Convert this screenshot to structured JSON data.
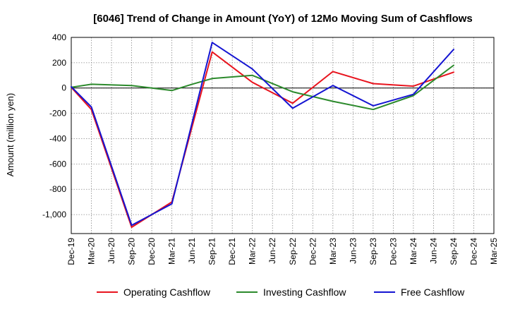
{
  "chart_data": {
    "type": "line",
    "title": "[6046]  Trend of Change in Amount (YoY) of 12Mo Moving Sum of Cashflows",
    "xlabel": "",
    "ylabel": "Amount (million yen)",
    "ylim": [
      -1150,
      400
    ],
    "yticks": [
      400,
      200,
      0,
      -200,
      -400,
      -600,
      -800,
      -1000
    ],
    "ytick_labels": [
      "400",
      "200",
      "0",
      "-200",
      "-400",
      "-600",
      "-800",
      "-1,000"
    ],
    "categories": [
      "Dec-19",
      "Mar-20",
      "Jun-20",
      "Sep-20",
      "Dec-20",
      "Mar-21",
      "Jun-21",
      "Sep-21",
      "Dec-21",
      "Mar-22",
      "Jun-22",
      "Sep-22",
      "Dec-22",
      "Mar-23",
      "Jun-23",
      "Sep-23",
      "Dec-23",
      "Mar-24",
      "Jun-24",
      "Sep-24",
      "Dec-24",
      "Mar-25"
    ],
    "grid": true,
    "legend_position": "bottom",
    "series": [
      {
        "name": "Operating Cashflow",
        "color": "#e8141e",
        "points": [
          [
            0,
            5
          ],
          [
            1,
            -170
          ],
          [
            3,
            -1100
          ],
          [
            5,
            -900
          ],
          [
            7,
            285
          ],
          [
            9,
            45
          ],
          [
            11,
            -120
          ],
          [
            13,
            130
          ],
          [
            15,
            35
          ],
          [
            17,
            15
          ],
          [
            19,
            125
          ]
        ]
      },
      {
        "name": "Investing Cashflow",
        "color": "#2c8a2c",
        "points": [
          [
            0,
            5
          ],
          [
            1,
            30
          ],
          [
            3,
            20
          ],
          [
            5,
            -20
          ],
          [
            6,
            30
          ],
          [
            7,
            75
          ],
          [
            9,
            100
          ],
          [
            11,
            -30
          ],
          [
            13,
            -105
          ],
          [
            15,
            -170
          ],
          [
            17,
            -60
          ],
          [
            19,
            180
          ]
        ]
      },
      {
        "name": "Free Cashflow",
        "color": "#1414d2",
        "points": [
          [
            0,
            10
          ],
          [
            1,
            -150
          ],
          [
            3,
            -1085
          ],
          [
            5,
            -915
          ],
          [
            7,
            360
          ],
          [
            9,
            150
          ],
          [
            11,
            -160
          ],
          [
            13,
            20
          ],
          [
            15,
            -140
          ],
          [
            17,
            -50
          ],
          [
            19,
            305
          ]
        ]
      }
    ]
  }
}
